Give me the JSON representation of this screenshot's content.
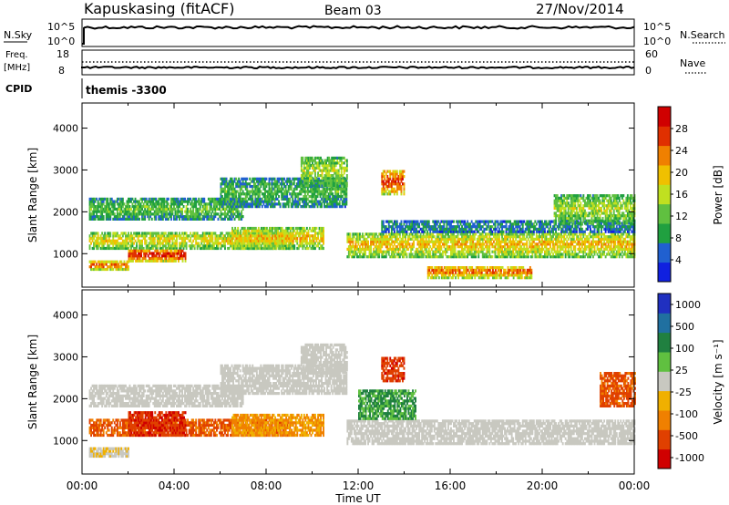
{
  "header": {
    "station": "Kapuskasing (fitACF)",
    "beam": "Beam 03",
    "date": "27/Nov/2014"
  },
  "noise_panel": {
    "left_label": "N.Sky",
    "left_ticks": [
      "10^5",
      "10^0"
    ],
    "right_label": "N.Search",
    "right_ticks": [
      "10^5",
      "10^0"
    ]
  },
  "freq_panel": {
    "left_label_1": "Freq.",
    "left_label_2": "[MHz]",
    "left_ticks": [
      "18",
      "8"
    ],
    "right_label": "Nave",
    "right_ticks": [
      "60",
      "0"
    ]
  },
  "cpid": {
    "label": "CPID",
    "value": "themis -3300"
  },
  "chart_data": [
    {
      "type": "heatmap",
      "name": "power",
      "ylabel": "Slant Range [km]",
      "ylim": [
        200,
        4600
      ],
      "yticks": [
        "1000",
        "2000",
        "3000",
        "4000"
      ],
      "xlim": [
        0,
        24
      ],
      "colorbar_label": "Power [dB]",
      "colorbar_ticks": [
        "4",
        "8",
        "12",
        "16",
        "20",
        "24",
        "28"
      ],
      "colorbar_range": [
        0,
        32
      ],
      "colormap": [
        "#1020e0",
        "#2060d0",
        "#20a040",
        "#60c040",
        "#c0e020",
        "#f0c000",
        "#f08000",
        "#e03000",
        "#d00000"
      ],
      "bands": [
        {
          "t": [
            0.3,
            9.0
          ],
          "r": [
            1100,
            1500
          ],
          "level": 0.55
        },
        {
          "t": [
            0.3,
            2.0
          ],
          "r": [
            600,
            800
          ],
          "level": 0.8
        },
        {
          "t": [
            2.0,
            4.5
          ],
          "r": [
            800,
            1100
          ],
          "level": 0.9
        },
        {
          "t": [
            0.3,
            7.0
          ],
          "r": [
            1800,
            2300
          ],
          "level": 0.35
        },
        {
          "t": [
            6.5,
            10.5
          ],
          "r": [
            1100,
            1600
          ],
          "level": 0.6
        },
        {
          "t": [
            6.0,
            11.5
          ],
          "r": [
            2100,
            2800
          ],
          "level": 0.3
        },
        {
          "t": [
            9.5,
            11.5
          ],
          "r": [
            2600,
            3300
          ],
          "level": 0.45
        },
        {
          "t": [
            11.5,
            24.0
          ],
          "r": [
            900,
            1500
          ],
          "level": 0.6
        },
        {
          "t": [
            13.0,
            14.0
          ],
          "r": [
            2400,
            3000
          ],
          "level": 0.85
        },
        {
          "t": [
            15.0,
            19.5
          ],
          "r": [
            400,
            700
          ],
          "level": 0.75
        },
        {
          "t": [
            13.0,
            24.0
          ],
          "r": [
            1500,
            1800
          ],
          "level": 0.2
        },
        {
          "t": [
            20.5,
            24.0
          ],
          "r": [
            1700,
            2400
          ],
          "level": 0.45
        }
      ]
    },
    {
      "type": "heatmap",
      "name": "velocity",
      "ylabel": "Slant Range [km]",
      "ylim": [
        200,
        4600
      ],
      "yticks": [
        "1000",
        "2000",
        "3000",
        "4000"
      ],
      "xlim": [
        0,
        24
      ],
      "colorbar_label": "Velocity [m s⁻¹]",
      "colorbar_ticks": [
        "1000",
        "500",
        "100",
        "25",
        "-25",
        "-100",
        "-500",
        "-1000"
      ],
      "colormap": [
        "#2030c0",
        "#2070a0",
        "#208040",
        "#60c040",
        "#c8c8c0",
        "#f0b000",
        "#f08000",
        "#e04000",
        "#d00000"
      ],
      "bands": [
        {
          "t": [
            0.3,
            9.0
          ],
          "r": [
            1100,
            1500
          ],
          "v": -0.65
        },
        {
          "t": [
            0.3,
            2.0
          ],
          "r": [
            600,
            800
          ],
          "v": -0.1
        },
        {
          "t": [
            2.0,
            4.5
          ],
          "r": [
            1100,
            1700
          ],
          "v": -0.85
        },
        {
          "t": [
            0.3,
            7.0
          ],
          "r": [
            1800,
            2300
          ],
          "v": 0.0
        },
        {
          "t": [
            6.5,
            10.5
          ],
          "r": [
            1100,
            1600
          ],
          "v": -0.4
        },
        {
          "t": [
            6.0,
            11.5
          ],
          "r": [
            2100,
            2800
          ],
          "v": 0.0
        },
        {
          "t": [
            9.5,
            11.5
          ],
          "r": [
            2600,
            3300
          ],
          "v": 0.0
        },
        {
          "t": [
            11.5,
            24.0
          ],
          "r": [
            900,
            1500
          ],
          "v": 0.0
        },
        {
          "t": [
            12.0,
            14.5
          ],
          "r": [
            1500,
            2200
          ],
          "v": 0.4
        },
        {
          "t": [
            13.0,
            14.0
          ],
          "r": [
            2400,
            3000
          ],
          "v": -0.8
        },
        {
          "t": [
            22.5,
            24.0
          ],
          "r": [
            1800,
            2600
          ],
          "v": -0.7
        }
      ]
    }
  ],
  "x_axis": {
    "ticks": [
      "00:00",
      "04:00",
      "08:00",
      "12:00",
      "16:00",
      "20:00",
      "00:00"
    ],
    "label": "Time UT"
  }
}
